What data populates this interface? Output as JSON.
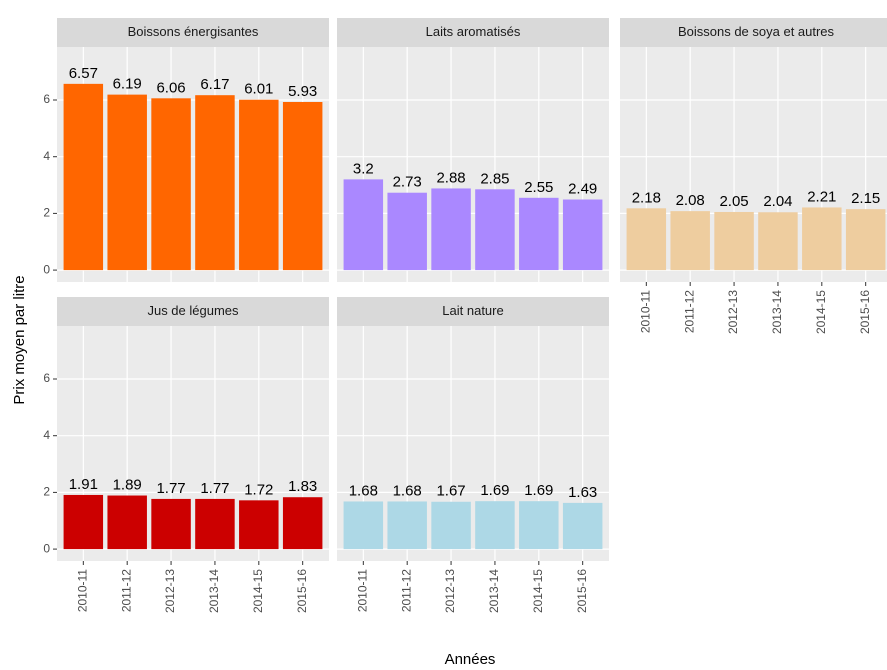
{
  "chart_data": [
    {
      "type": "bar",
      "title": "Boissons énergisantes",
      "values": [
        6.57,
        6.19,
        6.06,
        6.17,
        6.01,
        5.93
      ],
      "color": "#ff6600"
    },
    {
      "type": "bar",
      "title": "Laits aromatisés",
      "values": [
        3.2,
        2.73,
        2.88,
        2.85,
        2.55,
        2.49
      ],
      "color": "#aa88ff"
    },
    {
      "type": "bar",
      "title": "Boissons de soya et autres",
      "values": [
        2.18,
        2.08,
        2.05,
        2.04,
        2.21,
        2.15
      ],
      "color": "#eecd9f"
    },
    {
      "type": "bar",
      "title": "Jus de légumes",
      "values": [
        1.91,
        1.89,
        1.77,
        1.77,
        1.72,
        1.83
      ],
      "color": "#cc0000"
    },
    {
      "type": "bar",
      "title": "Lait nature",
      "values": [
        1.68,
        1.68,
        1.67,
        1.69,
        1.69,
        1.63
      ],
      "color": "#add8e6"
    }
  ],
  "shared": {
    "categories": [
      "2010-11",
      "2011-12",
      "2012-13",
      "2013-14",
      "2014-15",
      "2015-16"
    ],
    "ylim": [
      -0.42,
      7.87
    ],
    "yticks": [
      0,
      2,
      4,
      6
    ],
    "grid": true,
    "xlabel": "Années",
    "ylabel": "Prix moyen par litre"
  }
}
